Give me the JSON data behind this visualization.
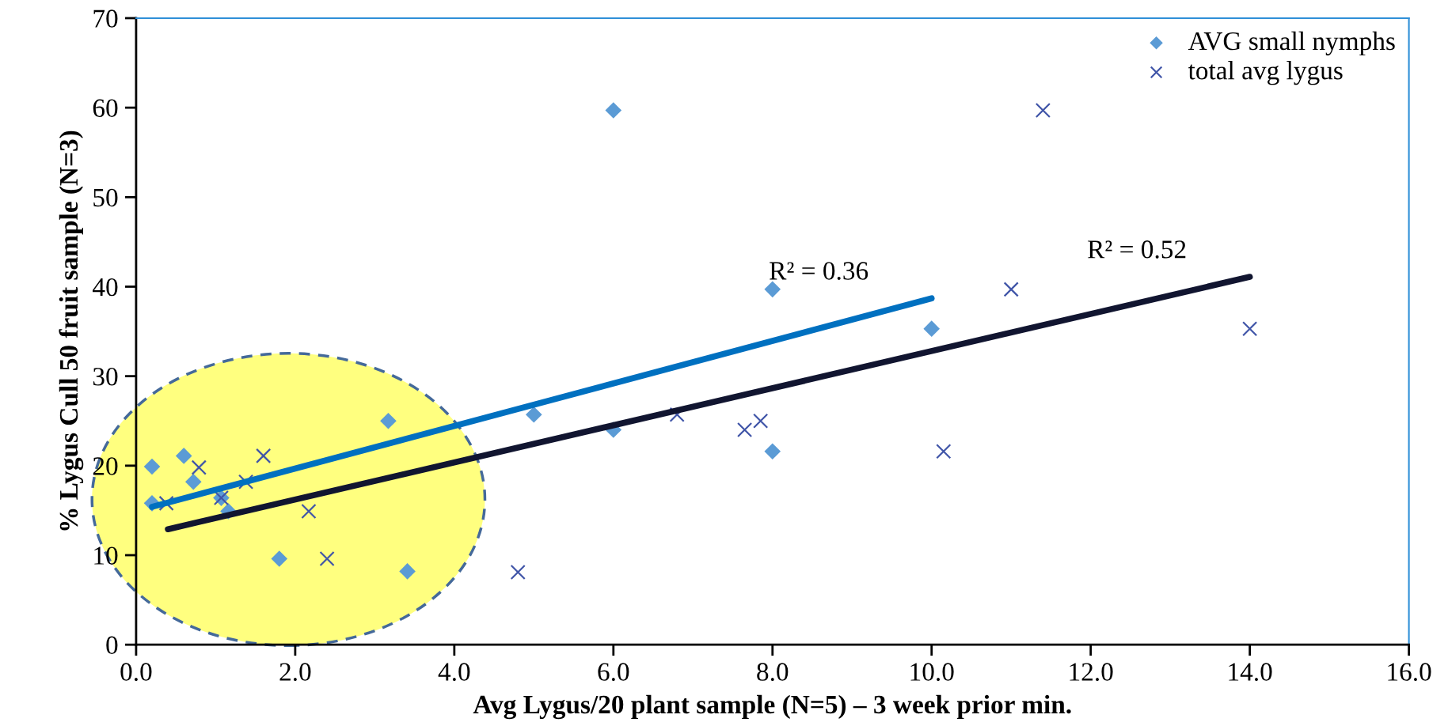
{
  "chart_data": {
    "type": "scatter",
    "xlabel": "Avg Lygus/20 plant sample (N=5) – 3 week prior min.",
    "ylabel": "% Lygus Cull 50 fruit sample (N=3)",
    "series": [
      {
        "name": "AVG small nymphs",
        "type": "scatter",
        "marker": "diamond",
        "color": "#5b9bd5",
        "x": [
          0.2,
          0.2,
          0.6,
          0.72,
          1.07,
          1.16,
          1.8,
          3.17,
          3.41,
          5.0,
          6.0,
          6.0,
          8.0,
          8.0,
          10.0
        ],
        "values": [
          19.9,
          15.8,
          21.1,
          18.2,
          16.4,
          14.9,
          9.6,
          25.0,
          8.2,
          25.7,
          24.0,
          59.7,
          39.7,
          21.6,
          35.3
        ]
      },
      {
        "name": "total avg lygus",
        "type": "scatter",
        "marker": "cross",
        "color": "#4055a8",
        "x": [
          0.38,
          0.79,
          1.07,
          1.38,
          1.6,
          2.17,
          2.4,
          4.8,
          6.8,
          7.65,
          7.85,
          10.15,
          11.0,
          11.4,
          14.0
        ],
        "values": [
          15.8,
          19.8,
          16.4,
          18.2,
          21.1,
          14.9,
          9.6,
          8.1,
          25.7,
          24.0,
          25.0,
          21.6,
          39.7,
          59.7,
          35.3
        ]
      },
      {
        "type": "line",
        "marker": "none",
        "line_style": "solid",
        "color": "#0070c0",
        "x": [
          0.2,
          10.0
        ],
        "values": [
          15.4,
          38.7
        ]
      },
      {
        "type": "line",
        "marker": "none",
        "line_style": "solid",
        "color": "#111530",
        "x": [
          0.4,
          14.0
        ],
        "values": [
          12.9,
          41.1
        ]
      }
    ],
    "annotations": [
      "R² = 0.36",
      "R² = 0.52"
    ],
    "xlim": [
      0,
      16
    ],
    "xticks": [
      {
        "value": 0,
        "label": "0.0"
      },
      {
        "value": 2,
        "label": "2.0"
      },
      {
        "value": 4,
        "label": "4.0"
      },
      {
        "value": 6,
        "label": "6.0"
      },
      {
        "value": 8,
        "label": "8.0"
      },
      {
        "value": 10,
        "label": "10.0"
      },
      {
        "value": 12,
        "label": "12.0"
      },
      {
        "value": 14,
        "label": "14.0"
      },
      {
        "value": 16,
        "label": "16.0"
      }
    ],
    "ylim": [
      0,
      70
    ],
    "yticks": [
      0,
      10,
      20,
      30,
      40,
      50,
      60,
      70
    ],
    "grid": false,
    "legend": "top right"
  }
}
